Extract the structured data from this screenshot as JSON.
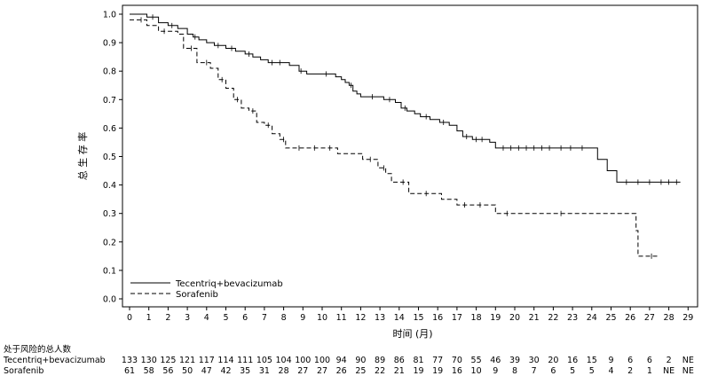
{
  "chart_data": {
    "type": "line",
    "ylabel": "总 生 存 率",
    "xlabel": "时间 (月)",
    "xlim": [
      0,
      29
    ],
    "ylim": [
      0.0,
      1.0
    ],
    "x_ticks": [
      0,
      1,
      2,
      3,
      4,
      5,
      6,
      7,
      8,
      9,
      10,
      11,
      12,
      13,
      14,
      15,
      16,
      17,
      18,
      19,
      20,
      21,
      22,
      23,
      24,
      25,
      26,
      27,
      28,
      29
    ],
    "y_ticks": [
      "0.0",
      "0.1",
      "0.2",
      "0.3",
      "0.4",
      "0.5",
      "0.6",
      "0.7",
      "0.8",
      "0.9",
      "1.0"
    ],
    "grid": false,
    "legend_position": "bottom-left",
    "series": [
      {
        "name": "Tecentriq+bevacizumab",
        "line_style": "solid",
        "color": "#000000",
        "steps": [
          [
            0,
            1.0
          ],
          [
            0.9,
            0.99
          ],
          [
            1.5,
            0.97
          ],
          [
            2.0,
            0.96
          ],
          [
            2.5,
            0.95
          ],
          [
            3.0,
            0.93
          ],
          [
            3.3,
            0.92
          ],
          [
            3.6,
            0.91
          ],
          [
            4.0,
            0.9
          ],
          [
            4.4,
            0.89
          ],
          [
            5.0,
            0.88
          ],
          [
            5.5,
            0.87
          ],
          [
            6.0,
            0.86
          ],
          [
            6.4,
            0.85
          ],
          [
            6.8,
            0.84
          ],
          [
            7.2,
            0.83
          ],
          [
            8.3,
            0.82
          ],
          [
            8.8,
            0.8
          ],
          [
            9.2,
            0.79
          ],
          [
            10.7,
            0.78
          ],
          [
            11.0,
            0.77
          ],
          [
            11.2,
            0.76
          ],
          [
            11.4,
            0.75
          ],
          [
            11.6,
            0.73
          ],
          [
            11.8,
            0.72
          ],
          [
            12.0,
            0.71
          ],
          [
            13.2,
            0.7
          ],
          [
            13.8,
            0.69
          ],
          [
            14.1,
            0.67
          ],
          [
            14.4,
            0.66
          ],
          [
            14.8,
            0.65
          ],
          [
            15.1,
            0.64
          ],
          [
            15.6,
            0.63
          ],
          [
            16.1,
            0.62
          ],
          [
            16.6,
            0.61
          ],
          [
            17.0,
            0.59
          ],
          [
            17.3,
            0.57
          ],
          [
            17.8,
            0.56
          ],
          [
            18.7,
            0.55
          ],
          [
            19.0,
            0.53
          ],
          [
            24.3,
            0.49
          ],
          [
            24.8,
            0.45
          ],
          [
            25.3,
            0.41
          ],
          [
            28.6,
            0.41
          ]
        ],
        "censor_x": [
          1.2,
          2.2,
          3.4,
          4.6,
          5.3,
          6.2,
          7.4,
          7.8,
          8.9,
          10.2,
          11.5,
          12.6,
          13.5,
          14.3,
          15.4,
          16.3,
          17.5,
          18.0,
          18.3,
          19.4,
          19.8,
          20.2,
          20.6,
          21.0,
          21.4,
          21.8,
          22.4,
          22.9,
          23.5,
          25.8,
          26.4,
          27.0,
          27.6,
          28.0,
          28.4
        ]
      },
      {
        "name": "Sorafenib",
        "line_style": "dashed",
        "color": "#000000",
        "steps": [
          [
            0,
            0.98
          ],
          [
            0.9,
            0.96
          ],
          [
            1.5,
            0.94
          ],
          [
            2.5,
            0.93
          ],
          [
            2.8,
            0.88
          ],
          [
            3.5,
            0.83
          ],
          [
            4.2,
            0.81
          ],
          [
            4.6,
            0.77
          ],
          [
            5.0,
            0.74
          ],
          [
            5.4,
            0.7
          ],
          [
            5.8,
            0.67
          ],
          [
            6.2,
            0.66
          ],
          [
            6.6,
            0.62
          ],
          [
            7.0,
            0.61
          ],
          [
            7.4,
            0.58
          ],
          [
            7.8,
            0.56
          ],
          [
            8.1,
            0.53
          ],
          [
            10.8,
            0.51
          ],
          [
            12.1,
            0.49
          ],
          [
            12.9,
            0.46
          ],
          [
            13.3,
            0.44
          ],
          [
            13.6,
            0.41
          ],
          [
            14.5,
            0.37
          ],
          [
            16.2,
            0.35
          ],
          [
            17.0,
            0.33
          ],
          [
            19.0,
            0.3
          ],
          [
            26.3,
            0.24
          ],
          [
            26.4,
            0.15
          ],
          [
            27.5,
            0.15
          ]
        ],
        "censor_x": [
          0.6,
          1.8,
          3.2,
          4.0,
          4.8,
          5.6,
          6.4,
          7.2,
          8.0,
          8.8,
          9.6,
          10.4,
          12.5,
          13.2,
          14.2,
          15.4,
          17.4,
          18.2,
          19.6,
          22.4,
          27.1
        ]
      }
    ],
    "at_risk": {
      "title": "处于风险的总人数",
      "rows": [
        {
          "name": "Tecentriq+bevacizumab",
          "values": [
            "133",
            "130",
            "125",
            "121",
            "117",
            "114",
            "111",
            "105",
            "104",
            "100",
            "100",
            "94",
            "90",
            "89",
            "86",
            "81",
            "77",
            "70",
            "55",
            "46",
            "39",
            "30",
            "20",
            "16",
            "15",
            "9",
            "6",
            "6",
            "2",
            "NE"
          ]
        },
        {
          "name": "Sorafenib",
          "values": [
            "61",
            "58",
            "56",
            "50",
            "47",
            "42",
            "35",
            "31",
            "28",
            "27",
            "27",
            "26",
            "25",
            "22",
            "21",
            "19",
            "19",
            "16",
            "10",
            "9",
            "8",
            "7",
            "6",
            "5",
            "5",
            "4",
            "2",
            "1",
            "NE",
            "NE"
          ]
        }
      ]
    }
  }
}
